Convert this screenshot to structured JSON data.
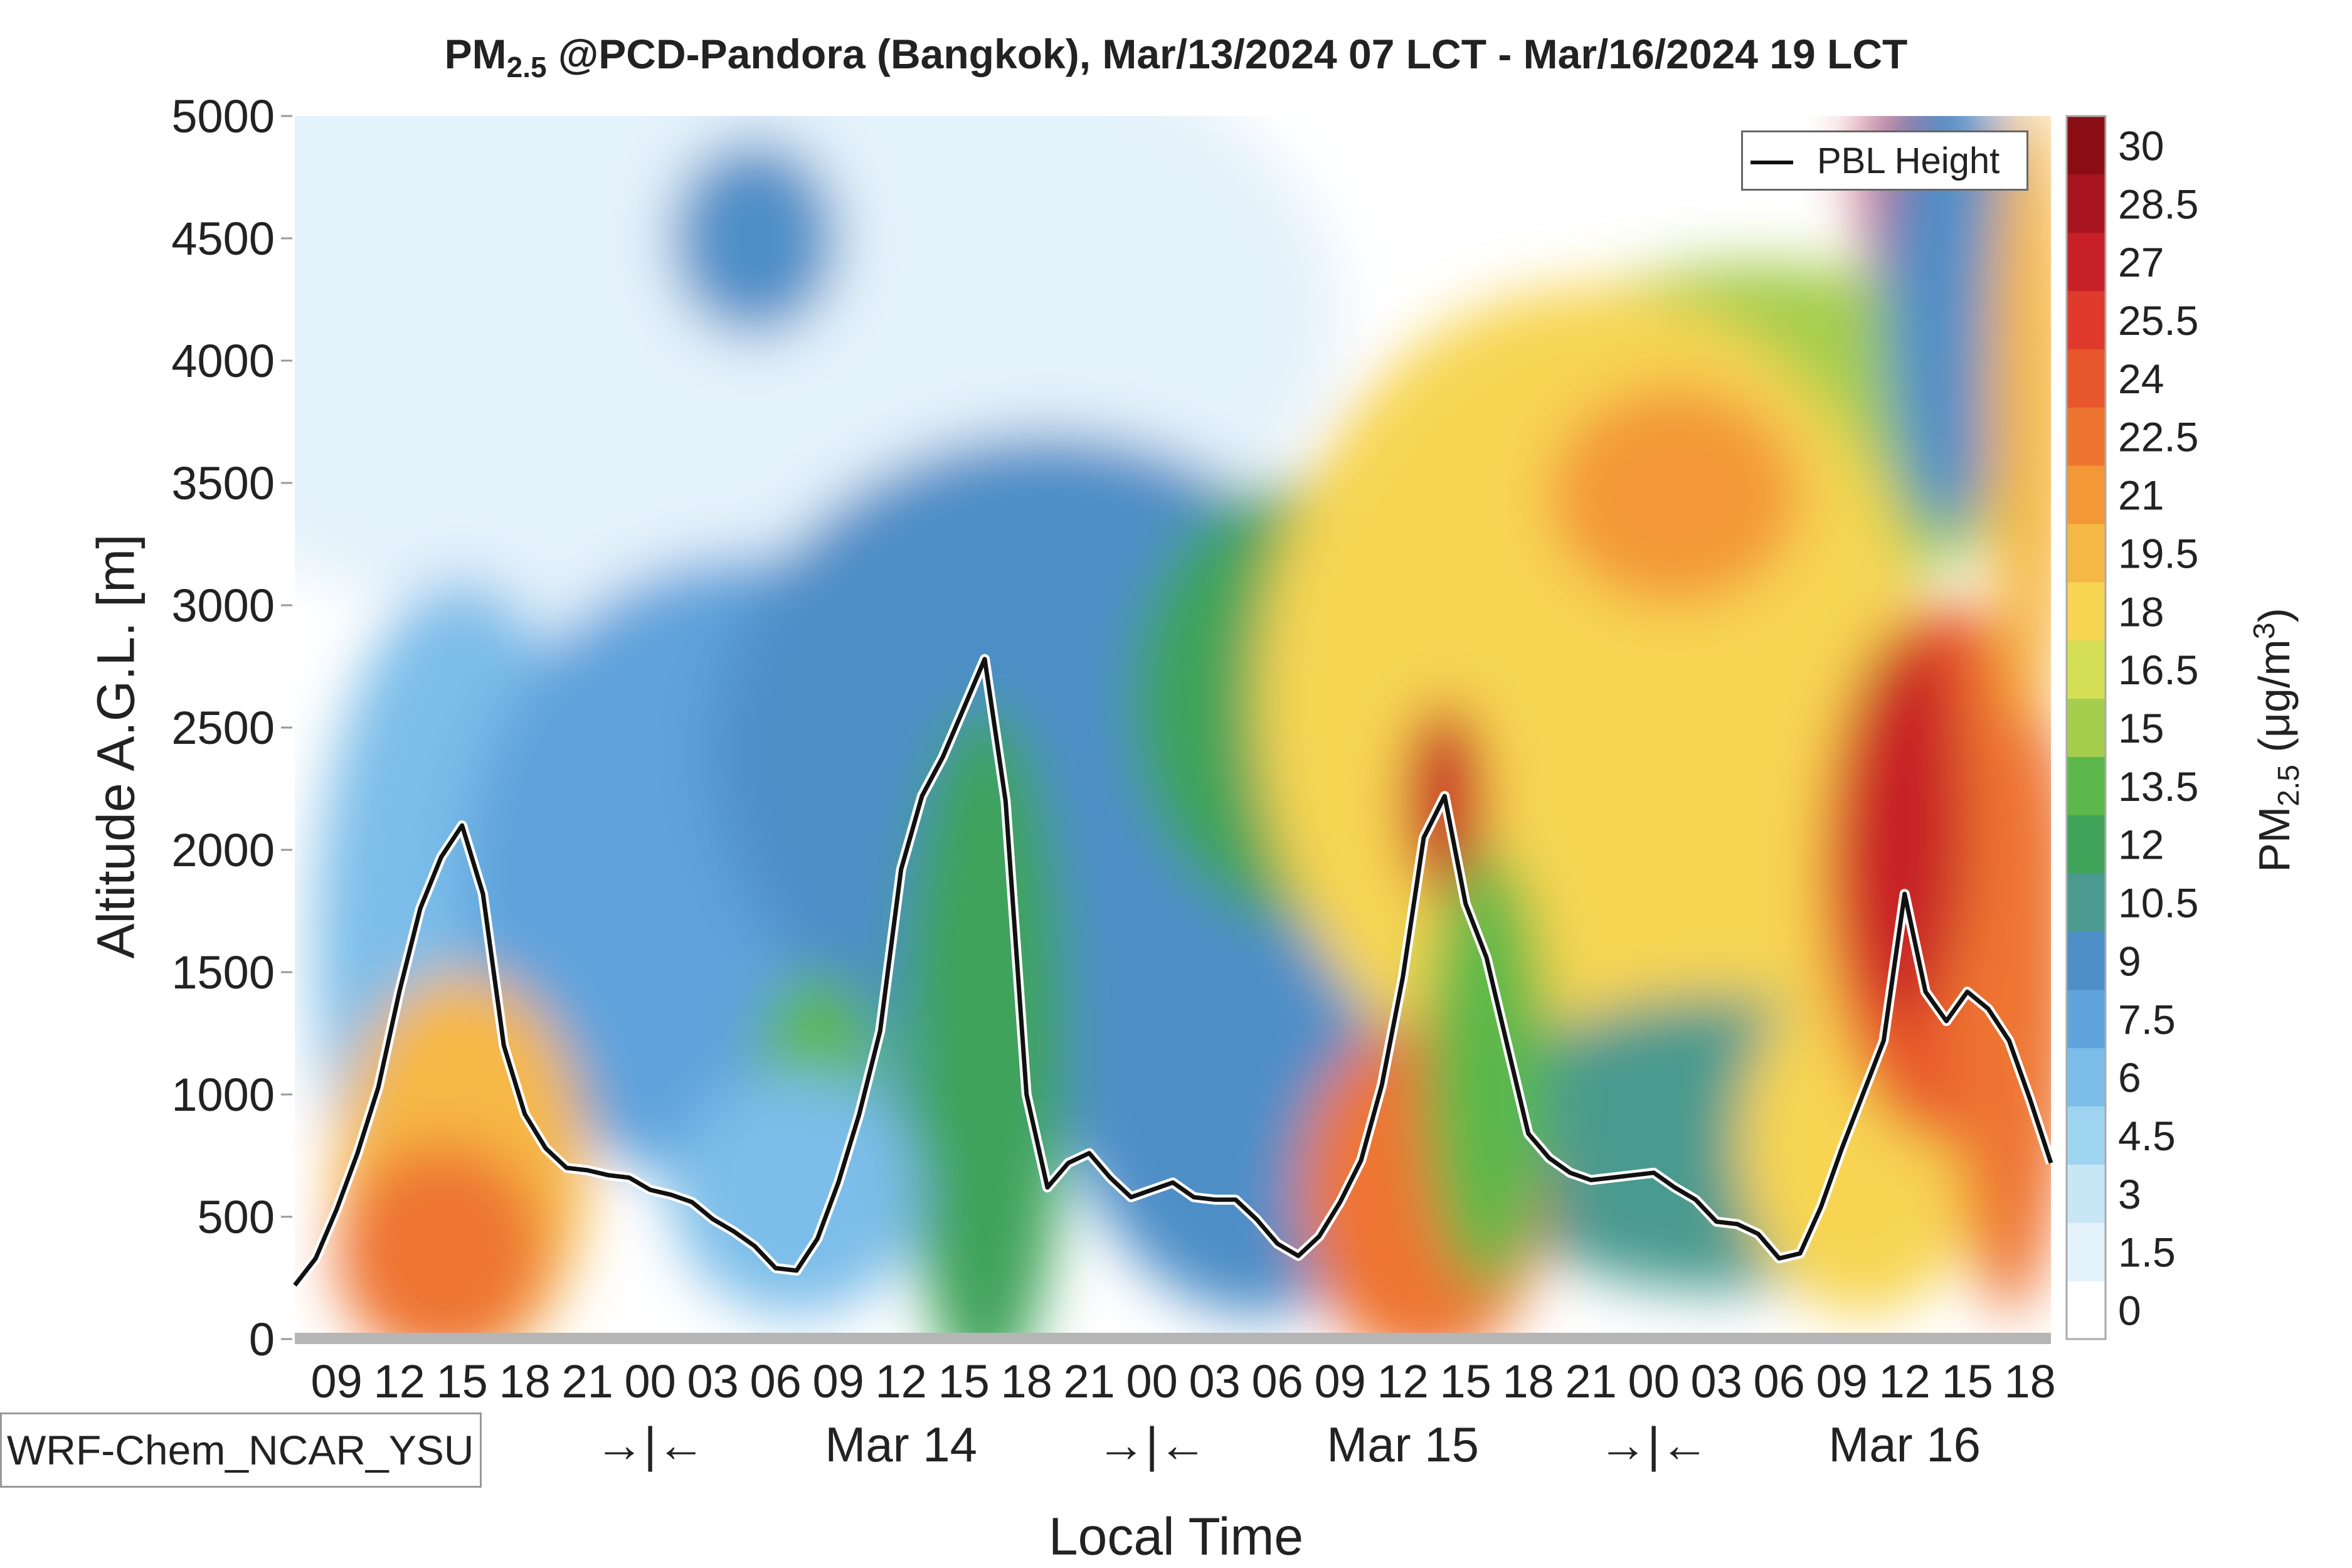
{
  "title_prefix": "PM",
  "title_subscript": "2.5",
  "title_suffix": " @PCD-Pandora (Bangkok), Mar/13/2024 07 LCT - Mar/16/2024 19 LCT",
  "model_label": "WRF-Chem_NCAR_YSU",
  "legend_label": "PBL Height",
  "colorbar_label_prefix": "PM",
  "colorbar_label_subscript": "2.5",
  "colorbar_label_units": "(μg/m",
  "colorbar_label_units_sup": "3",
  "colorbar_label_units_close": ")",
  "chart_data": {
    "type": "heatmap",
    "title": "PM2.5 @PCD-Pandora (Bangkok), Mar/13/2024 07 LCT - Mar/16/2024 19 LCT",
    "xlabel": "Local Time",
    "ylabel": "Altitude A.G.L. [m]",
    "ylim": [
      0,
      5000
    ],
    "x_hour_range": [
      7,
      19
    ],
    "y_ticks": [
      "0",
      "500",
      "1000",
      "1500",
      "2000",
      "2500",
      "3000",
      "3500",
      "4000",
      "4500",
      "5000"
    ],
    "x_tick_labels": [
      "09",
      "12",
      "15",
      "18",
      "21",
      "00",
      "03",
      "06",
      "09",
      "12",
      "15",
      "18",
      "21",
      "00",
      "03",
      "06",
      "09",
      "12",
      "15",
      "18",
      "21",
      "00",
      "03",
      "06",
      "09",
      "12",
      "15",
      "18"
    ],
    "x_tick_hours": [
      2,
      5,
      8,
      11,
      14,
      17,
      20,
      23,
      26,
      29,
      32,
      35,
      38,
      41,
      44,
      47,
      50,
      53,
      56,
      59,
      62,
      65,
      68,
      71,
      74,
      77,
      80,
      83
    ],
    "day_labels": [
      {
        "text": "→|←",
        "hour": 17
      },
      {
        "text": "Mar 14",
        "hour": 29
      },
      {
        "text": "→|←",
        "hour": 41
      },
      {
        "text": "Mar 15",
        "hour": 53
      },
      {
        "text": "→|←",
        "hour": 65
      },
      {
        "text": "Mar 16",
        "hour": 77
      }
    ],
    "colorbar_ticks": [
      "0",
      "1.5",
      "3",
      "4.5",
      "6",
      "7.5",
      "9",
      "10.5",
      "12",
      "13.5",
      "15",
      "16.5",
      "18",
      "19.5",
      "21",
      "22.5",
      "24",
      "25.5",
      "27",
      "28.5",
      "30"
    ],
    "colorbar_colors": [
      "#ffffff",
      "#e4f2fb",
      "#c7e6f6",
      "#9fd4f1",
      "#7cbde9",
      "#5fa3dc",
      "#4d8ec7",
      "#4a9a8f",
      "#3fa35a",
      "#5cb84a",
      "#a5cd4e",
      "#d4df55",
      "#f7d553",
      "#f6b844",
      "#f39737",
      "#ee7530",
      "#e8562b",
      "#df3a2b",
      "#c72127",
      "#a8151e",
      "#8c0e15"
    ],
    "colorbar_range": [
      0,
      30
    ],
    "pbl_height": {
      "name": "PBL Height",
      "hours": [
        0,
        1,
        2,
        3,
        4,
        5,
        6,
        7,
        8,
        9,
        10,
        11,
        12,
        13,
        14,
        15,
        16,
        17,
        18,
        19,
        20,
        21,
        22,
        23,
        24,
        25,
        26,
        27,
        28,
        29,
        30,
        31,
        32,
        33,
        34,
        35,
        36,
        37,
        38,
        39,
        40,
        41,
        42,
        43,
        44,
        45,
        46,
        47,
        48,
        49,
        50,
        51,
        52,
        53,
        54,
        55,
        56,
        57,
        58,
        59,
        60,
        61,
        62,
        63,
        64,
        65,
        66,
        67,
        68,
        69,
        70,
        71,
        72,
        73,
        74,
        75,
        76,
        77,
        78,
        79,
        80,
        81,
        82,
        83,
        84
      ],
      "values": [
        220,
        330,
        530,
        760,
        1030,
        1420,
        1760,
        1970,
        2100,
        1820,
        1200,
        920,
        780,
        700,
        690,
        670,
        660,
        610,
        590,
        560,
        490,
        440,
        380,
        290,
        280,
        410,
        640,
        920,
        1260,
        1920,
        2220,
        2380,
        2580,
        2780,
        2200,
        1000,
        620,
        720,
        760,
        660,
        580,
        610,
        640,
        580,
        570,
        570,
        490,
        390,
        340,
        420,
        560,
        730,
        1040,
        1480,
        2050,
        2220,
        1780,
        1560,
        1200,
        840,
        740,
        680,
        650,
        660,
        670,
        680,
        620,
        570,
        480,
        470,
        430,
        330,
        350,
        540,
        780,
        1000,
        1220,
        1820,
        1420,
        1300,
        1420,
        1350,
        1220,
        980,
        720
      ]
    }
  }
}
